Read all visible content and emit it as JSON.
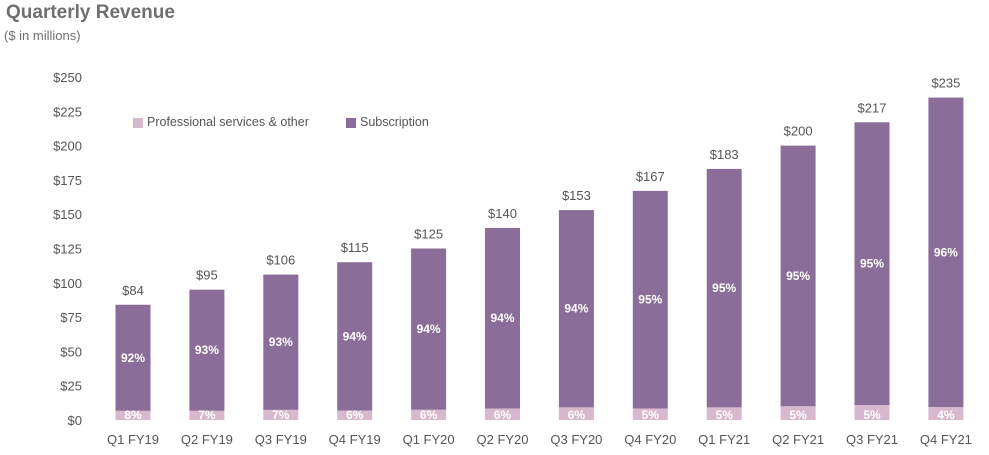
{
  "chart_data": {
    "type": "bar",
    "stacked": true,
    "title": "Quarterly Revenue",
    "subtitle": "($ in millions)",
    "xlabel": "",
    "ylabel": "",
    "ylim": [
      0,
      250
    ],
    "y_ticks": [
      0,
      25,
      50,
      75,
      100,
      125,
      150,
      175,
      200,
      225,
      250
    ],
    "y_tick_labels": [
      "$0",
      "$25",
      "$50",
      "$75",
      "$100",
      "$125",
      "$150",
      "$175",
      "$200",
      "$225",
      "$250"
    ],
    "grid": false,
    "legend_position": "top-left",
    "categories": [
      "Q1 FY19",
      "Q2 FY19",
      "Q3 FY19",
      "Q4 FY19",
      "Q1 FY20",
      "Q2 FY20",
      "Q3 FY20",
      "Q4 FY20",
      "Q1 FY21",
      "Q2 FY21",
      "Q3 FY21",
      "Q4 FY21"
    ],
    "totals": [
      84,
      95,
      106,
      115,
      125,
      140,
      153,
      167,
      183,
      200,
      217,
      235
    ],
    "total_labels": [
      "$84",
      "$95",
      "$106",
      "$115",
      "$125",
      "$140",
      "$153",
      "$167",
      "$183",
      "$200",
      "$217",
      "$235"
    ],
    "series": [
      {
        "name": "Professional services & other",
        "color": "#d8b8cc",
        "share_pct": [
          8,
          7,
          7,
          6,
          6,
          6,
          6,
          5,
          5,
          5,
          5,
          4
        ],
        "labels": [
          "8%",
          "7%",
          "7%",
          "6%",
          "6%",
          "6%",
          "6%",
          "5%",
          "5%",
          "5%",
          "5%",
          "4%"
        ],
        "values": [
          6.7,
          6.7,
          7.4,
          6.9,
          7.5,
          8.4,
          9.2,
          8.4,
          9.2,
          10.0,
          10.9,
          9.4
        ]
      },
      {
        "name": "Subscription",
        "color": "#8a6e99",
        "share_pct": [
          92,
          93,
          93,
          94,
          94,
          94,
          94,
          95,
          95,
          95,
          95,
          96
        ],
        "labels": [
          "92%",
          "93%",
          "93%",
          "94%",
          "94%",
          "94%",
          "94%",
          "95%",
          "95%",
          "95%",
          "95%",
          "96%"
        ],
        "values": [
          77.3,
          88.3,
          98.6,
          108.1,
          117.5,
          131.6,
          143.8,
          158.6,
          173.8,
          190.0,
          206.1,
          225.6
        ]
      }
    ]
  }
}
